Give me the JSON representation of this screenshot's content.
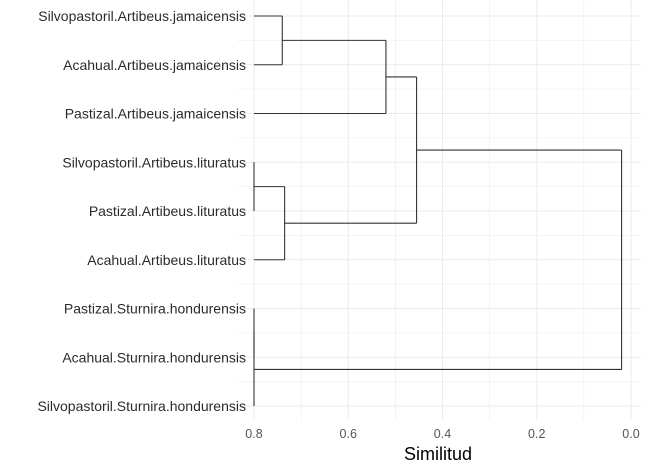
{
  "chart_data": {
    "type": "dendrogram",
    "orientation": "horizontal",
    "xlabel": "Similitud",
    "ylabel": "",
    "title": "",
    "xlim": [
      0.8,
      0.0
    ],
    "x_ticks": [
      "0.8",
      "0.6",
      "0.4",
      "0.2",
      "0.0"
    ],
    "grid": true,
    "leaves": [
      "Silvopastoril.Artibeus.jamaicensis",
      "Acahual.Artibeus.jamaicensis",
      "Pastizal.Artibeus.jamaicensis",
      "Silvopastoril.Artibeus.lituratus",
      "Pastizal.Artibeus.lituratus",
      "Acahual.Artibeus.lituratus",
      "Pastizal.Sturnira.hondurensis",
      "Acahual.Sturnira.hondurensis",
      "Silvopastoril.Sturnira.hondurensis"
    ],
    "tree": {
      "height": 0.02,
      "children": [
        {
          "height": 0.455,
          "children": [
            {
              "height": 0.52,
              "children": [
                {
                  "height": 0.74,
                  "children": [
                    0,
                    1
                  ]
                },
                2
              ]
            },
            {
              "height": 0.735,
              "children": [
                {
                  "height": 0.8,
                  "children": [
                    3,
                    4
                  ]
                },
                5
              ]
            }
          ]
        },
        {
          "height": 0.8,
          "children": [
            {
              "height": 0.8,
              "children": [
                6,
                7
              ]
            },
            8
          ]
        }
      ]
    },
    "line_color": "#333333",
    "grid_color": "#ebebeb"
  }
}
